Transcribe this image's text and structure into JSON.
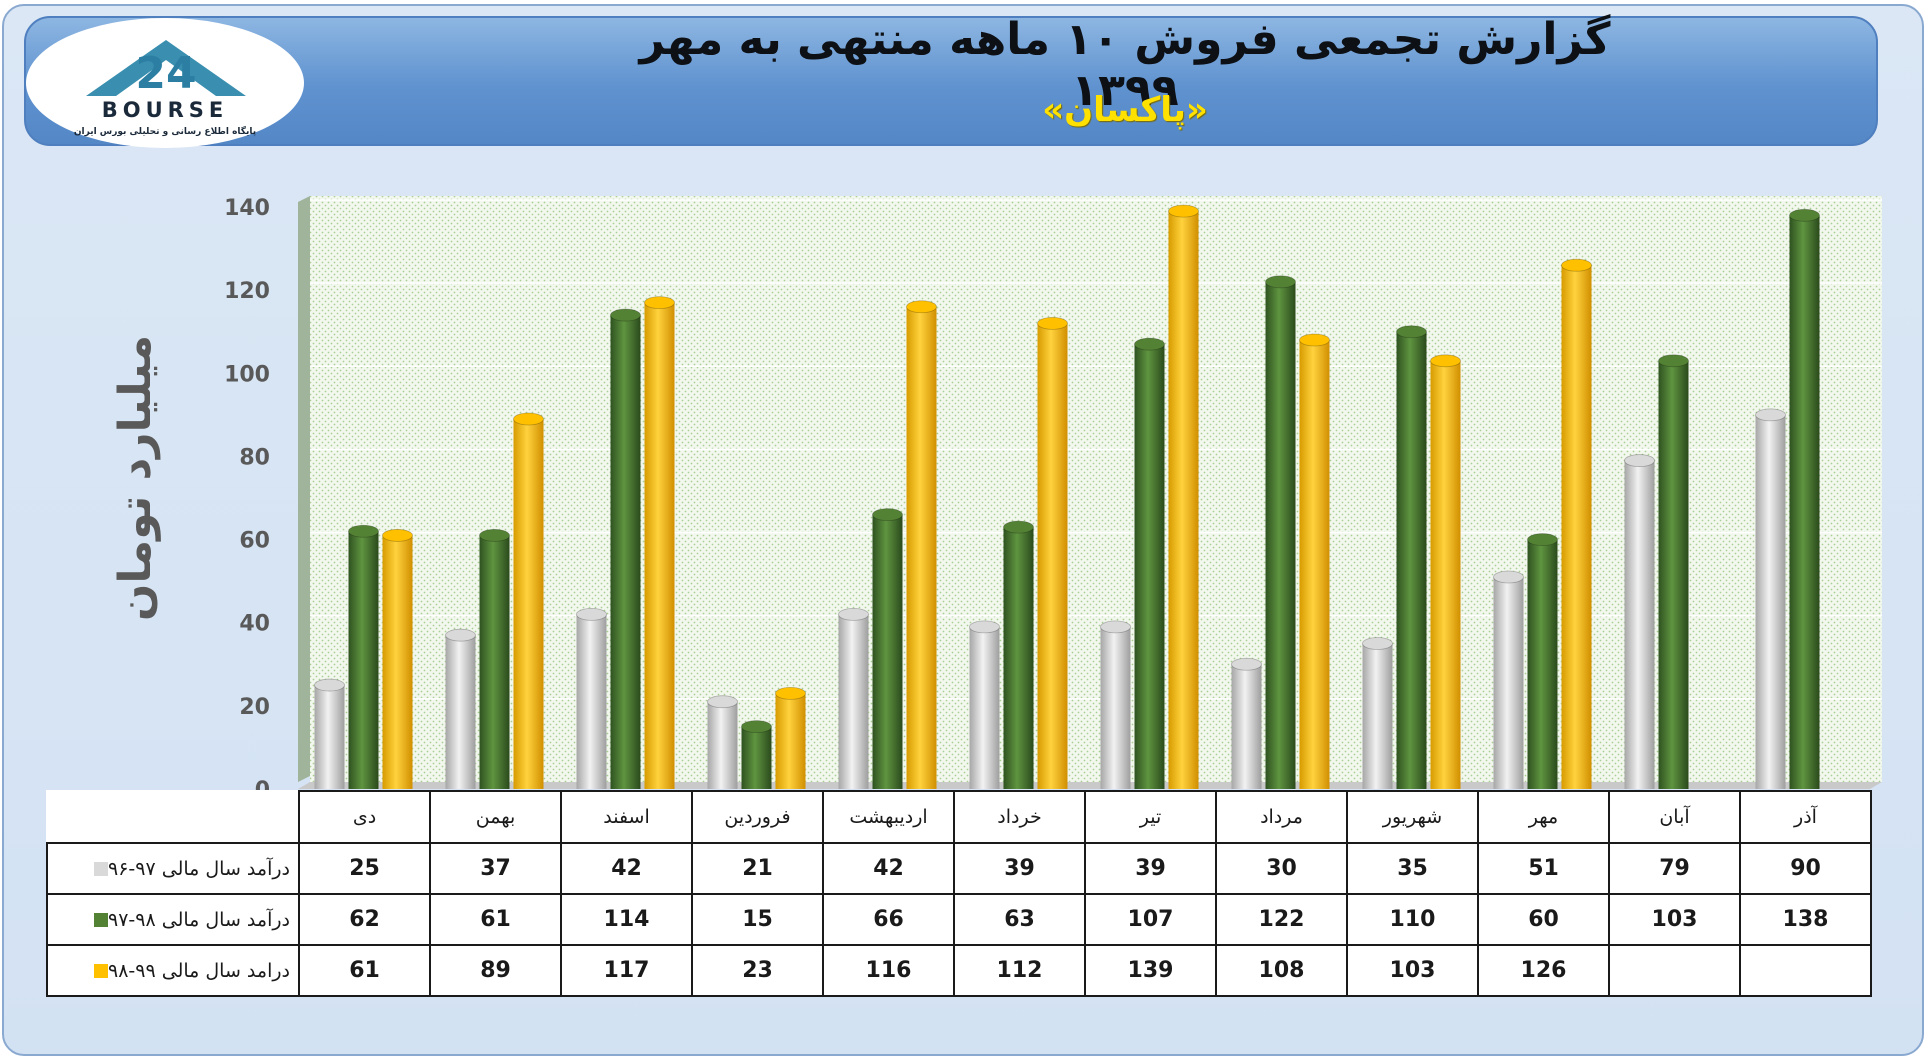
{
  "header": {
    "title": "گزارش تجمعی فروش ۱۰ ماهه منتهی به مهر ۱۳۹۹",
    "subtitle": "«پاکسان»",
    "accent_color": "#ffe100"
  },
  "logo": {
    "wordmark": "BOURSE",
    "number": "24",
    "tagline": "پایگاه اطلاع رسانی و تحلیلی بورس ایران",
    "color": "#3a8fb0"
  },
  "chart_data": {
    "type": "bar",
    "ylabel": "میلیارد تومان",
    "ylim": [
      0,
      140
    ],
    "yticks": [
      0,
      20,
      40,
      60,
      80,
      100,
      120,
      140
    ],
    "grid": true,
    "categories": [
      "دی",
      "بهمن",
      "اسفند",
      "فروردین",
      "اردیبهشت",
      "خرداد",
      "تیر",
      "مرداد",
      "شهریور",
      "مهر",
      "آبان",
      "آذر"
    ],
    "series": [
      {
        "name": "درآمد سال مالی ۹۷-۹۶",
        "color": "#d9d9d9",
        "values": [
          25,
          37,
          42,
          21,
          42,
          39,
          39,
          30,
          35,
          51,
          79,
          90
        ]
      },
      {
        "name": "درآمد سال مالی ۹۸-۹۷",
        "color": "#548235",
        "values": [
          62,
          61,
          114,
          15,
          66,
          63,
          107,
          122,
          110,
          60,
          103,
          138
        ]
      },
      {
        "name": "درامد سال مالی ۹۹-۹۸",
        "color": "#ffc000",
        "values": [
          61,
          89,
          117,
          23,
          116,
          112,
          139,
          108,
          103,
          126,
          null,
          null
        ]
      }
    ]
  }
}
